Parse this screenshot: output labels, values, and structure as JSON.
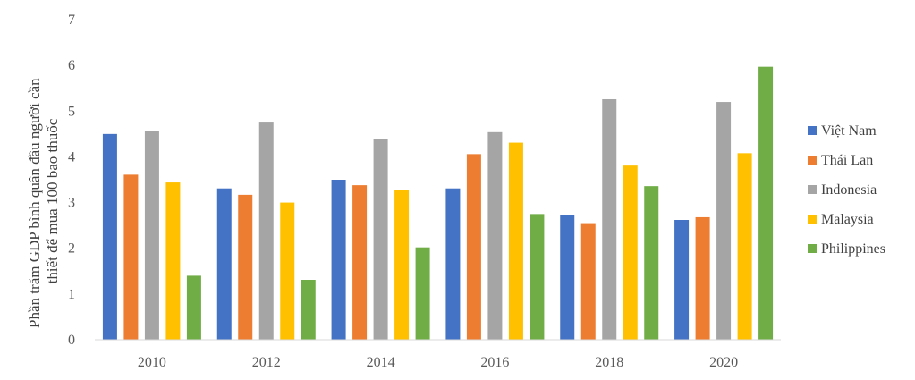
{
  "chart_data": {
    "type": "bar",
    "title": "",
    "xlabel": "",
    "ylabel": [
      "Phần trăm GDP bình quân đầu người cần",
      "thiết để mua 100 bao thuốc"
    ],
    "categories": [
      "2010",
      "2012",
      "2014",
      "2016",
      "2018",
      "2020"
    ],
    "ylim": [
      0,
      7
    ],
    "yticks": [
      "0",
      "1",
      "2",
      "3",
      "4",
      "5",
      "6",
      "7"
    ],
    "grid": false,
    "legend_position": "right",
    "series": [
      {
        "name": "Việt Nam",
        "color": "#4472C4",
        "values": [
          4.5,
          3.31,
          3.5,
          3.31,
          2.72,
          2.62
        ]
      },
      {
        "name": "Thái Lan",
        "color": "#ED7D31",
        "values": [
          3.61,
          3.17,
          3.38,
          4.06,
          2.55,
          2.68
        ]
      },
      {
        "name": "Indonesia",
        "color": "#A5A5A5",
        "values": [
          4.56,
          4.75,
          4.38,
          4.54,
          5.26,
          5.2
        ]
      },
      {
        "name": "Malaysia",
        "color": "#FFC000",
        "values": [
          3.44,
          3.0,
          3.28,
          4.31,
          3.81,
          4.08
        ]
      },
      {
        "name": "Philippines",
        "color": "#70AD47",
        "values": [
          1.4,
          1.31,
          2.02,
          2.75,
          3.36,
          5.97
        ]
      }
    ]
  }
}
